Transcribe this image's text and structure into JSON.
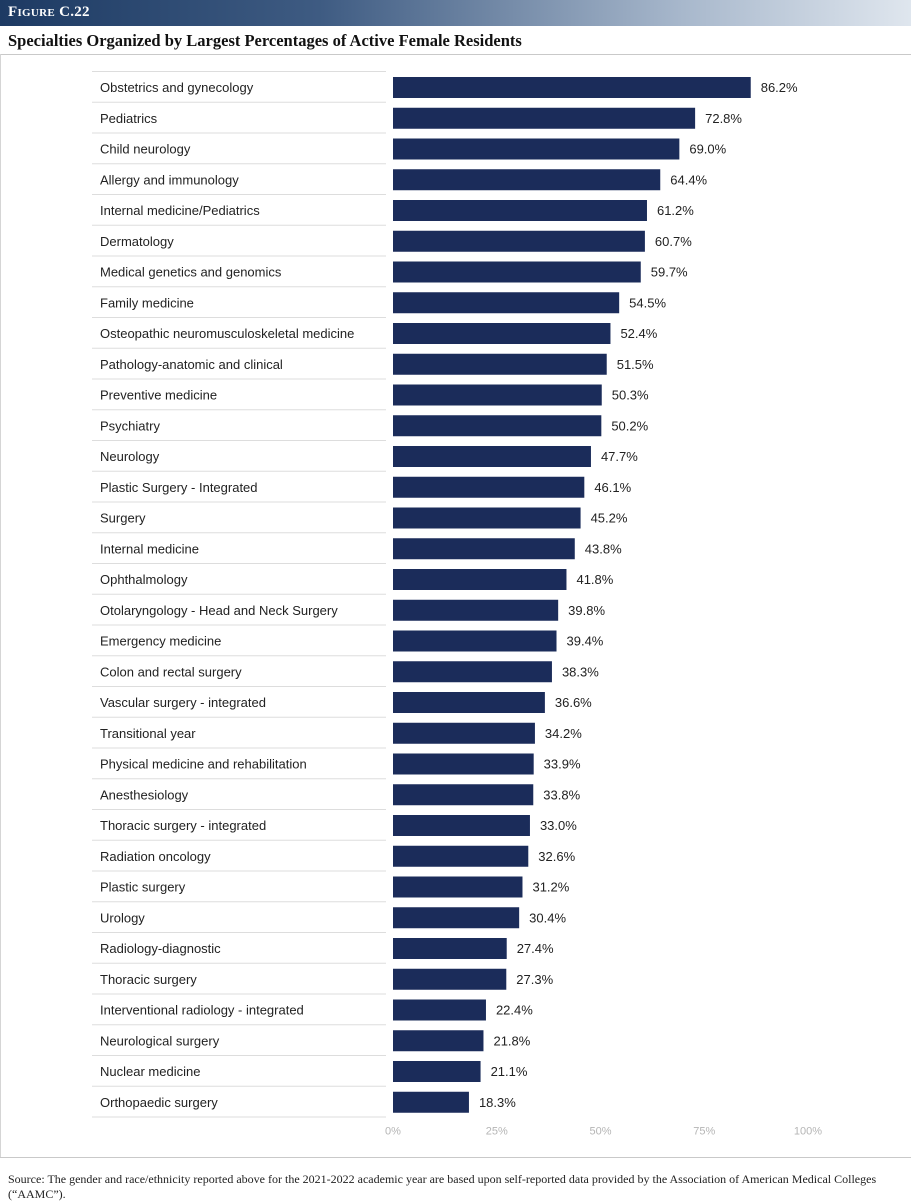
{
  "figure": {
    "label": "Figure C.22",
    "title": "Specialties Organized by Largest Percentages of Active Female Residents",
    "source": "Source: The gender and race/ethnicity reported above for the 2021-2022 academic year are based upon self-reported data provided by the Association of American Medical Colleges (“AAMC”)."
  },
  "colors": {
    "bar": "#1b2c5a",
    "header_start": "#1d3a63"
  },
  "chart_data": {
    "type": "bar",
    "orientation": "horizontal",
    "title": "Specialties Organized by Largest Percentages of Active Female Residents",
    "categories": [
      "Obstetrics and gynecology",
      "Pediatrics",
      "Child neurology",
      "Allergy and immunology",
      "Internal medicine/Pediatrics",
      "Dermatology",
      "Medical genetics and genomics",
      "Family medicine",
      "Osteopathic neuromusculoskeletal medicine",
      "Pathology-anatomic and clinical",
      "Preventive medicine",
      "Psychiatry",
      "Neurology",
      "Plastic Surgery - Integrated",
      "Surgery",
      "Internal medicine",
      "Ophthalmology",
      "Otolaryngology - Head and Neck Surgery",
      "Emergency medicine",
      "Colon and rectal surgery",
      "Vascular surgery - integrated",
      "Transitional year",
      "Physical medicine and rehabilitation",
      "Anesthesiology",
      "Thoracic surgery - integrated",
      "Radiation oncology",
      "Plastic surgery",
      "Urology",
      "Radiology-diagnostic",
      "Thoracic surgery",
      "Interventional radiology - integrated",
      "Neurological surgery",
      "Nuclear medicine",
      "Orthopaedic surgery"
    ],
    "values": [
      86.2,
      72.8,
      69.0,
      64.4,
      61.2,
      60.7,
      59.7,
      54.5,
      52.4,
      51.5,
      50.3,
      50.2,
      47.7,
      46.1,
      45.2,
      43.8,
      41.8,
      39.8,
      39.4,
      38.3,
      36.6,
      34.2,
      33.9,
      33.8,
      33.0,
      32.6,
      31.2,
      30.4,
      27.4,
      27.3,
      22.4,
      21.8,
      21.1,
      18.3
    ],
    "value_labels": [
      "86.2%",
      "72.8%",
      "69.0%",
      "64.4%",
      "61.2%",
      "60.7%",
      "59.7%",
      "54.5%",
      "52.4%",
      "51.5%",
      "50.3%",
      "50.2%",
      "47.7%",
      "46.1%",
      "45.2%",
      "43.8%",
      "41.8%",
      "39.8%",
      "39.4%",
      "38.3%",
      "36.6%",
      "34.2%",
      "33.9%",
      "33.8%",
      "33.0%",
      "32.6%",
      "31.2%",
      "30.4%",
      "27.4%",
      "27.3%",
      "22.4%",
      "21.8%",
      "21.1%",
      "18.3%"
    ],
    "xlim": [
      0,
      100
    ],
    "xticks": [
      "0%",
      "25%",
      "50%",
      "75%",
      "100%"
    ],
    "xlabel": "",
    "ylabel": "",
    "grid": false,
    "legend": false
  }
}
